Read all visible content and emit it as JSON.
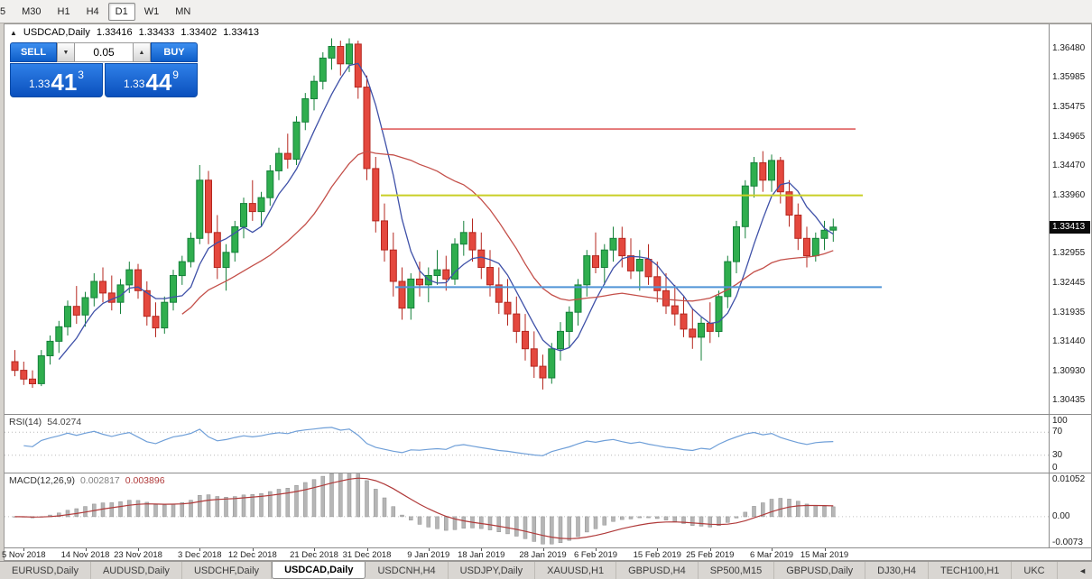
{
  "toolbar": {
    "timeframes": [
      "5",
      "M30",
      "H1",
      "H4",
      "D1",
      "W1",
      "MN"
    ],
    "active_timeframe": "D1"
  },
  "icons": {
    "chart_window_icon": "▲",
    "spinner_up": "▲",
    "spinner_down": "▼",
    "tab_scroll_left": "◄"
  },
  "chart_header": {
    "symbol": "USDCAD,Daily",
    "open": "1.33416",
    "high": "1.33433",
    "low": "1.33402",
    "close": "1.33413"
  },
  "trade_panel": {
    "sell_label": "SELL",
    "buy_label": "BUY",
    "volume": "0.05",
    "sell_price_prefix": "1.33",
    "sell_price_big": "41",
    "sell_price_sup": "3",
    "buy_price_prefix": "1.33",
    "buy_price_big": "44",
    "buy_price_sup": "9"
  },
  "price_scale": {
    "labels": [
      "1.36480",
      "1.35985",
      "1.35475",
      "1.34965",
      "1.34470",
      "1.33960",
      "1.32955",
      "1.32445",
      "1.31935",
      "1.31440",
      "1.30930",
      "1.30435"
    ],
    "current": "1.33413"
  },
  "rsi": {
    "label": "RSI(14)",
    "value": "54.0274",
    "levels": [
      "100",
      "70",
      "30",
      "0"
    ]
  },
  "macd": {
    "label": "MACD(12,26,9)",
    "value_main": "0.002817",
    "value_signal": "0.003896",
    "levels": [
      "0.01052",
      "0.00",
      "-0.0073"
    ]
  },
  "bottom_tabs": {
    "active_index": 3,
    "tabs": [
      "EURUSD,Daily",
      "AUDUSD,Daily",
      "USDCHF,Daily",
      "USDCAD,Daily",
      "USDCNH,H4",
      "USDJPY,Daily",
      "XAUUSD,H1",
      "GBPUSD,H4",
      "SP500,M15",
      "GBPUSD,Daily",
      "DJ30,H4",
      "TECH100,H1",
      "UKC"
    ]
  },
  "chart_data": {
    "type": "candlestick",
    "symbol": "USDCAD",
    "timeframe": "Daily",
    "ylim": [
      1.302,
      1.369
    ],
    "current_price": 1.33413,
    "ma_fast_period": 6,
    "ma_slow_period": 20,
    "rsi_period": 14,
    "rsi_levels": [
      70,
      30
    ],
    "macd_ylim": [
      -0.0075,
      0.01055
    ],
    "colors": {
      "bull": "#2fae4e",
      "bull_border": "#15803a",
      "bear": "#e4483e",
      "bear_border": "#b5271f",
      "ma_fast": "#3f51a8",
      "ma_slow": "#c4504a",
      "rsi": "#6f9fd8",
      "macd_hist": "#b6b6b6",
      "macd_signal": "#b03a3a"
    },
    "hlines": [
      {
        "price": 1.351,
        "color": "#e06060",
        "x1": 0.36,
        "x2": 0.815,
        "width": 1.6
      },
      {
        "price": 1.3396,
        "color": "#c9cf26",
        "x1": 0.36,
        "x2": 0.822,
        "width": 2
      },
      {
        "price": 1.3238,
        "color": "#4f94d6",
        "x1": 0.374,
        "x2": 0.84,
        "width": 2
      }
    ],
    "date_labels": [
      "5 Nov 2018",
      "14 Nov 2018",
      "23 Nov 2018",
      "3 Dec 2018",
      "12 Dec 2018",
      "21 Dec 2018",
      "31 Dec 2018",
      "9 Jan 2019",
      "18 Jan 2019",
      "28 Jan 2019",
      "6 Feb 2019",
      "15 Feb 2019",
      "25 Feb 2019",
      "6 Mar 2019",
      "15 Mar 2019"
    ],
    "ohlc": [
      [
        1.311,
        1.313,
        1.3085,
        1.3095
      ],
      [
        1.3095,
        1.311,
        1.307,
        1.308
      ],
      [
        1.308,
        1.3095,
        1.3065,
        1.3072
      ],
      [
        1.3072,
        1.313,
        1.3068,
        1.312
      ],
      [
        1.312,
        1.3155,
        1.3105,
        1.3145
      ],
      [
        1.3145,
        1.318,
        1.3125,
        1.317
      ],
      [
        1.317,
        1.3215,
        1.3155,
        1.3205
      ],
      [
        1.3205,
        1.324,
        1.3175,
        1.319
      ],
      [
        1.319,
        1.323,
        1.317,
        1.322
      ],
      [
        1.322,
        1.3262,
        1.3205,
        1.3248
      ],
      [
        1.3248,
        1.3272,
        1.3212,
        1.3228
      ],
      [
        1.3228,
        1.3258,
        1.3198,
        1.3212
      ],
      [
        1.3212,
        1.3252,
        1.3192,
        1.3242
      ],
      [
        1.3242,
        1.3282,
        1.3228,
        1.3268
      ],
      [
        1.3268,
        1.3278,
        1.3218,
        1.3232
      ],
      [
        1.3232,
        1.3248,
        1.3172,
        1.3188
      ],
      [
        1.3188,
        1.3212,
        1.3152,
        1.3168
      ],
      [
        1.3168,
        1.3222,
        1.3158,
        1.3212
      ],
      [
        1.3212,
        1.3268,
        1.3198,
        1.3258
      ],
      [
        1.3258,
        1.3292,
        1.3242,
        1.3282
      ],
      [
        1.3282,
        1.3332,
        1.3272,
        1.3322
      ],
      [
        1.3322,
        1.3448,
        1.3312,
        1.3422
      ],
      [
        1.3422,
        1.3438,
        1.3312,
        1.3332
      ],
      [
        1.3332,
        1.3362,
        1.3252,
        1.3272
      ],
      [
        1.3272,
        1.3312,
        1.3232,
        1.3298
      ],
      [
        1.3298,
        1.3352,
        1.3282,
        1.3342
      ],
      [
        1.3342,
        1.3392,
        1.3322,
        1.3382
      ],
      [
        1.3382,
        1.3422,
        1.3352,
        1.3368
      ],
      [
        1.3368,
        1.3402,
        1.3342,
        1.3392
      ],
      [
        1.3392,
        1.3448,
        1.3378,
        1.3438
      ],
      [
        1.3438,
        1.3478,
        1.3422,
        1.3468
      ],
      [
        1.3468,
        1.3502,
        1.3442,
        1.3458
      ],
      [
        1.3458,
        1.3532,
        1.3448,
        1.3522
      ],
      [
        1.3522,
        1.3572,
        1.3508,
        1.3562
      ],
      [
        1.3562,
        1.3602,
        1.3542,
        1.3592
      ],
      [
        1.3592,
        1.3642,
        1.3578,
        1.3632
      ],
      [
        1.3632,
        1.3666,
        1.3612,
        1.3652
      ],
      [
        1.3652,
        1.3662,
        1.3602,
        1.3622
      ],
      [
        1.3622,
        1.3666,
        1.3608,
        1.3656
      ],
      [
        1.3656,
        1.3662,
        1.3562,
        1.3582
      ],
      [
        1.3582,
        1.3602,
        1.3422,
        1.3442
      ],
      [
        1.3442,
        1.3462,
        1.3332,
        1.3352
      ],
      [
        1.3352,
        1.3382,
        1.3282,
        1.3302
      ],
      [
        1.3302,
        1.3332,
        1.3222,
        1.3248
      ],
      [
        1.3248,
        1.3272,
        1.3182,
        1.3202
      ],
      [
        1.3202,
        1.3262,
        1.3182,
        1.3252
      ],
      [
        1.3252,
        1.3282,
        1.3222,
        1.3242
      ],
      [
        1.3242,
        1.3272,
        1.3212,
        1.3258
      ],
      [
        1.3258,
        1.3302,
        1.3242,
        1.3268
      ],
      [
        1.3268,
        1.3292,
        1.3232,
        1.3252
      ],
      [
        1.3252,
        1.3322,
        1.3242,
        1.3312
      ],
      [
        1.3312,
        1.3352,
        1.3292,
        1.3332
      ],
      [
        1.3332,
        1.3356,
        1.3282,
        1.3302
      ],
      [
        1.3302,
        1.3332,
        1.3252,
        1.3272
      ],
      [
        1.3272,
        1.3302,
        1.3222,
        1.3242
      ],
      [
        1.3242,
        1.3272,
        1.3192,
        1.3212
      ],
      [
        1.3212,
        1.3252,
        1.3172,
        1.3192
      ],
      [
        1.3192,
        1.3222,
        1.3142,
        1.3162
      ],
      [
        1.3162,
        1.3192,
        1.3112,
        1.3132
      ],
      [
        1.3132,
        1.3162,
        1.3082,
        1.3102
      ],
      [
        1.3102,
        1.3122,
        1.3062,
        1.3082
      ],
      [
        1.3082,
        1.3142,
        1.3072,
        1.3132
      ],
      [
        1.3132,
        1.3178,
        1.3112,
        1.3162
      ],
      [
        1.3162,
        1.3205,
        1.3135,
        1.3195
      ],
      [
        1.3195,
        1.3252,
        1.3172,
        1.3242
      ],
      [
        1.3242,
        1.3302,
        1.3222,
        1.3292
      ],
      [
        1.3292,
        1.3332,
        1.3262,
        1.3272
      ],
      [
        1.3272,
        1.3312,
        1.3242,
        1.3302
      ],
      [
        1.3302,
        1.3342,
        1.3282,
        1.3322
      ],
      [
        1.3322,
        1.3342,
        1.3272,
        1.3292
      ],
      [
        1.3292,
        1.3322,
        1.3252,
        1.3266
      ],
      [
        1.3266,
        1.3302,
        1.3232,
        1.3286
      ],
      [
        1.3286,
        1.3312,
        1.3242,
        1.3256
      ],
      [
        1.3256,
        1.3282,
        1.3212,
        1.3232
      ],
      [
        1.3232,
        1.3262,
        1.3192,
        1.3206
      ],
      [
        1.3206,
        1.3242,
        1.3172,
        1.3192
      ],
      [
        1.3192,
        1.3222,
        1.3152,
        1.3166
      ],
      [
        1.3166,
        1.3202,
        1.3132,
        1.3152
      ],
      [
        1.3152,
        1.3186,
        1.3112,
        1.3176
      ],
      [
        1.3176,
        1.3212,
        1.3142,
        1.3162
      ],
      [
        1.3162,
        1.3232,
        1.3152,
        1.3222
      ],
      [
        1.3222,
        1.3292,
        1.3202,
        1.3282
      ],
      [
        1.3282,
        1.3352,
        1.3262,
        1.3342
      ],
      [
        1.3342,
        1.3422,
        1.3322,
        1.3412
      ],
      [
        1.3412,
        1.3462,
        1.3392,
        1.3452
      ],
      [
        1.3452,
        1.3472,
        1.3402,
        1.3422
      ],
      [
        1.3422,
        1.3466,
        1.3402,
        1.3456
      ],
      [
        1.3456,
        1.3462,
        1.3382,
        1.3402
      ],
      [
        1.3402,
        1.3422,
        1.3342,
        1.3362
      ],
      [
        1.3362,
        1.3382,
        1.3302,
        1.3322
      ],
      [
        1.3322,
        1.3342,
        1.3272,
        1.3292
      ],
      [
        1.3292,
        1.3332,
        1.3282,
        1.3322
      ],
      [
        1.3322,
        1.3352,
        1.3302,
        1.3336
      ],
      [
        1.3336,
        1.3356,
        1.3316,
        1.33413
      ]
    ]
  }
}
